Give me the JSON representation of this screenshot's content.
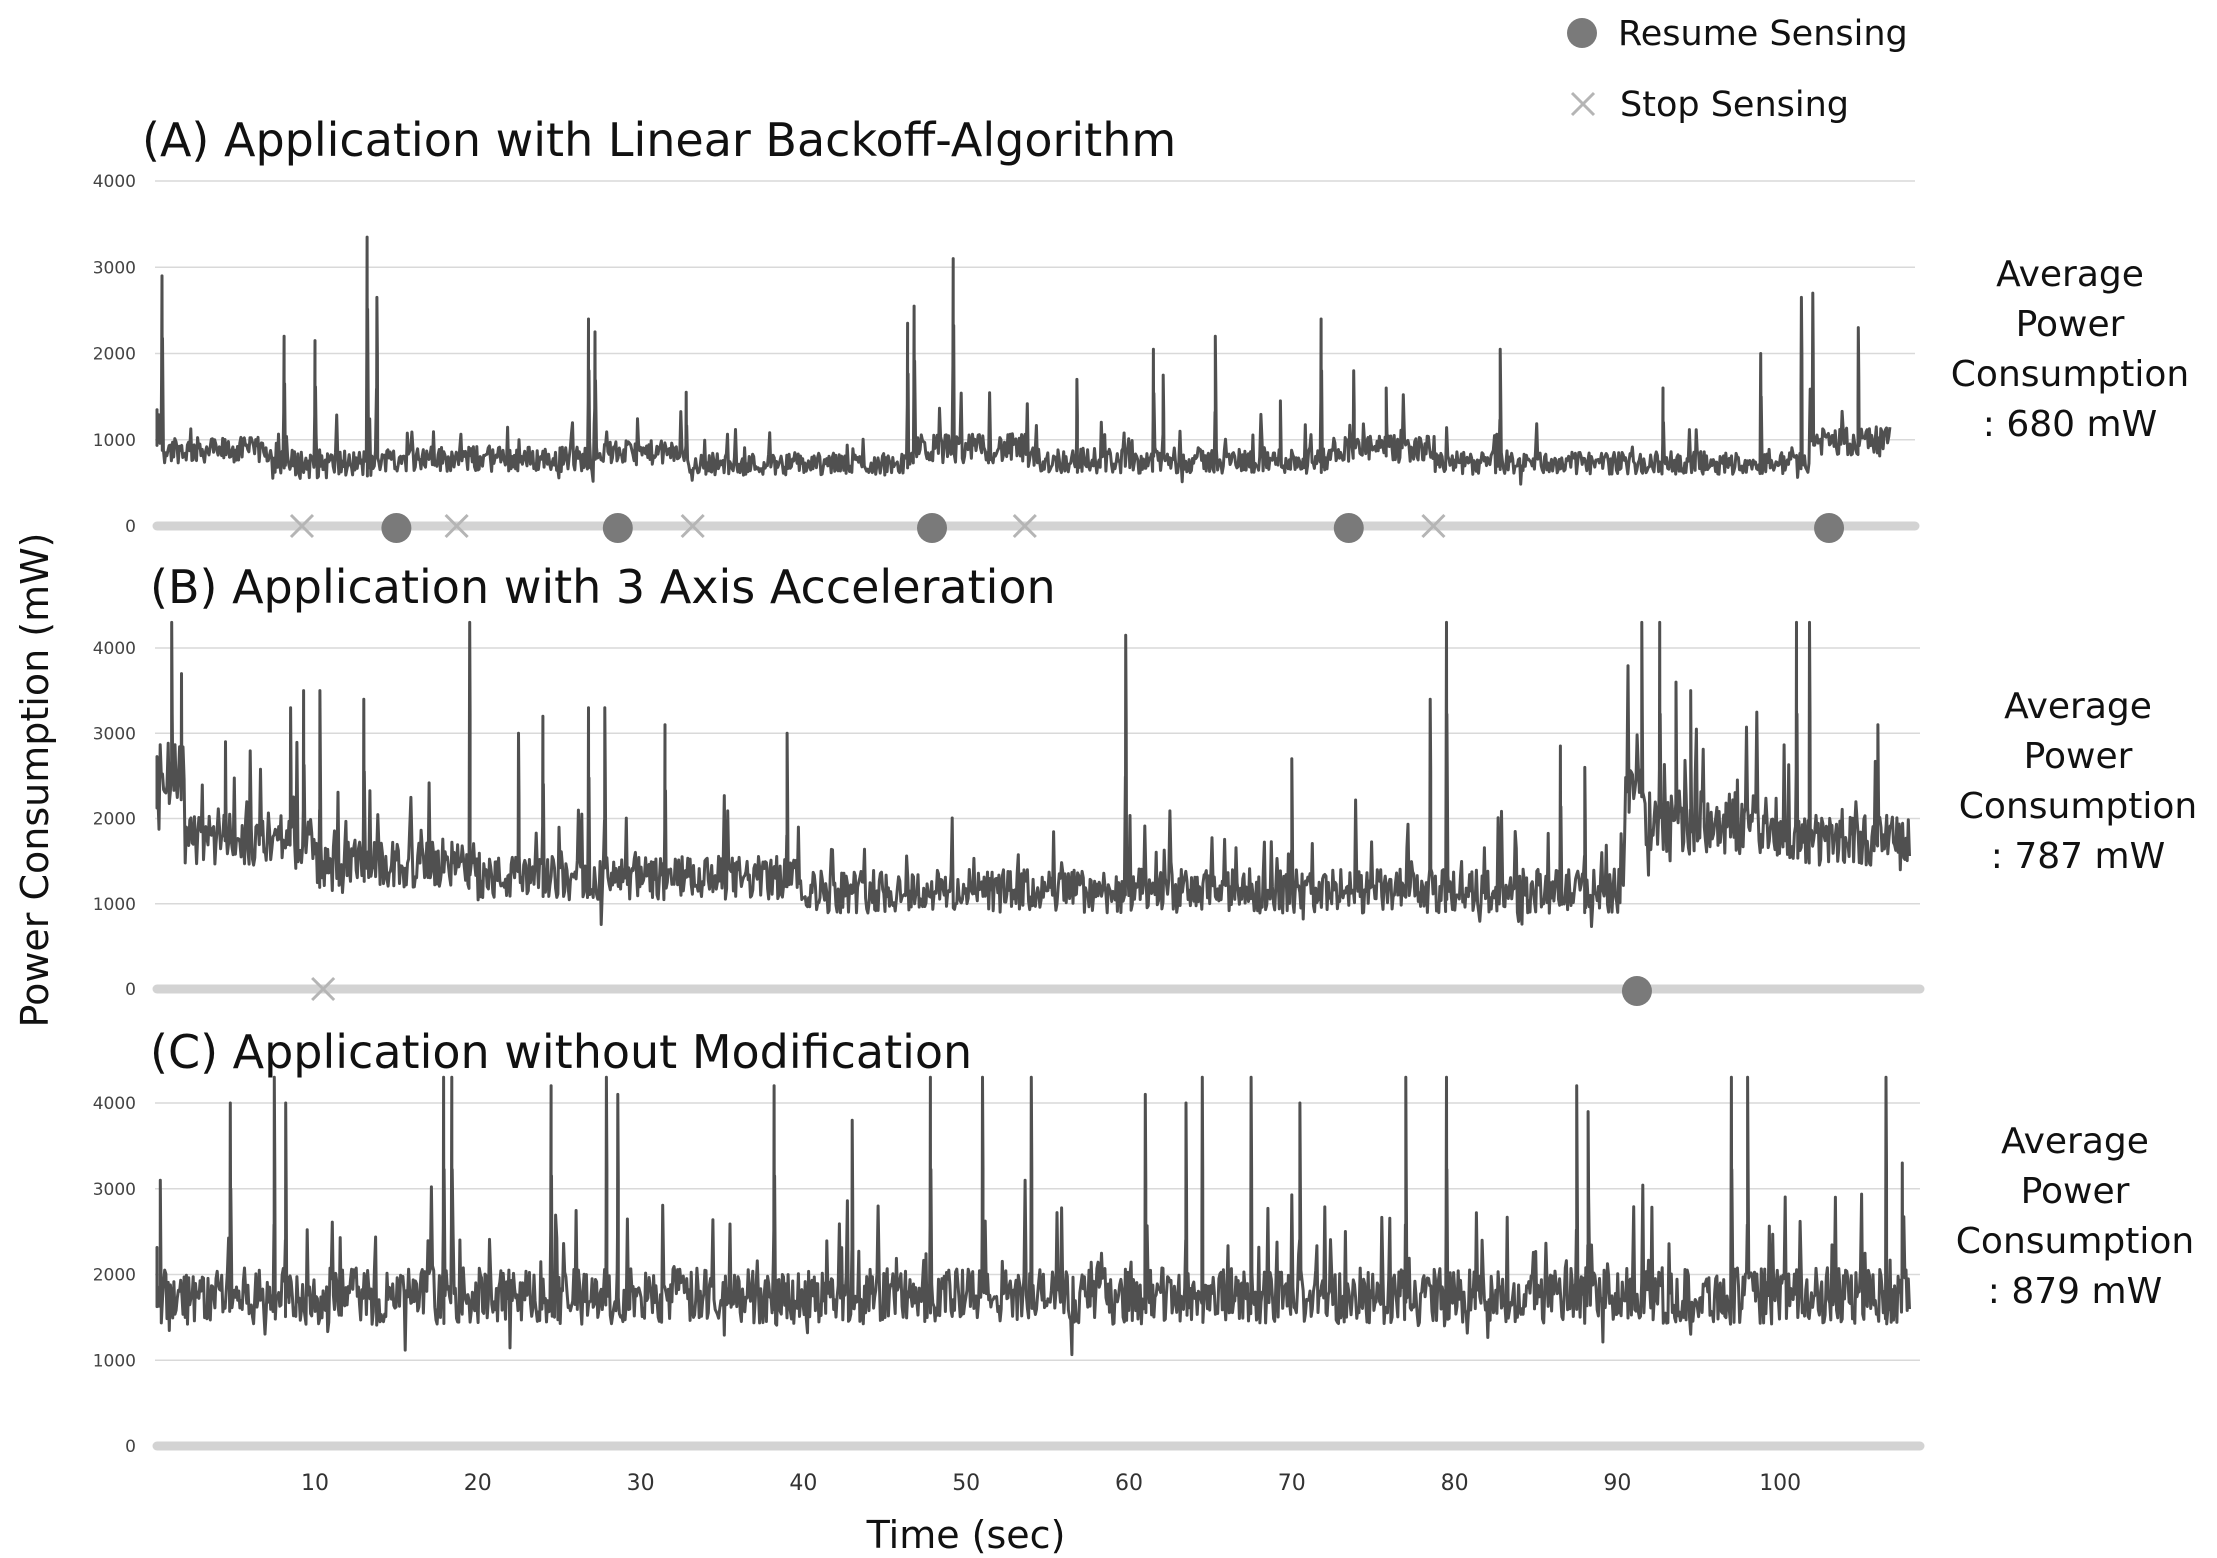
{
  "chart_data": {
    "type": "line",
    "legend": {
      "position": "top-right",
      "resume_label": "Resume Sensing",
      "stop_label": "Stop Sensing"
    },
    "ylabel": "Power Consumption (mW)",
    "xlabel": "Time (sec)",
    "xlim": [
      0,
      108
    ],
    "x_ticks": [
      "10",
      "20",
      "30",
      "40",
      "50",
      "60",
      "70",
      "80",
      "90",
      "100"
    ],
    "panels": [
      {
        "title": "(A) Application with Linear Backoff-Algorithm",
        "ylim": [
          0,
          4000
        ],
        "y_ticks": [
          "4000",
          "3000",
          "2000",
          "1000",
          "0"
        ],
        "avg_lines": [
          "Average",
          "Power",
          "Consumption",
          ": 680 mW"
        ],
        "resume_times": [
          15,
          28.6,
          47.9,
          73.5,
          103
        ],
        "stop_times": [
          9.2,
          18.7,
          33.2,
          53.6,
          78.7
        ],
        "series": {
          "name": "Power (A)",
          "segments": [
            {
              "start": 0.0,
              "end": 1.8,
              "base": 1150,
              "noise": 200
            },
            {
              "start": 1.8,
              "end": 8.5,
              "base": 880,
              "noise": 150
            },
            {
              "start": 8.5,
              "end": 15.0,
              "base": 720,
              "noise": 170
            },
            {
              "start": 15.0,
              "end": 28.6,
              "base": 780,
              "noise": 150
            },
            {
              "start": 28.6,
              "end": 34.0,
              "base": 850,
              "noise": 140
            },
            {
              "start": 34.0,
              "end": 47.9,
              "base": 720,
              "noise": 130
            },
            {
              "start": 47.9,
              "end": 55.0,
              "base": 900,
              "noise": 170
            },
            {
              "start": 55.0,
              "end": 73.5,
              "base": 760,
              "noise": 150
            },
            {
              "start": 73.5,
              "end": 80.0,
              "base": 900,
              "noise": 150
            },
            {
              "start": 80.0,
              "end": 103.0,
              "base": 730,
              "noise": 130
            },
            {
              "start": 103.0,
              "end": 108.0,
              "base": 980,
              "noise": 170
            }
          ],
          "spikes": [
            [
              1.8,
              2900
            ],
            [
              9.3,
              2200
            ],
            [
              11.2,
              2150
            ],
            [
              14.4,
              3350
            ],
            [
              15.0,
              2650
            ],
            [
              28.0,
              2400
            ],
            [
              28.4,
              2250
            ],
            [
              34.0,
              1550
            ],
            [
              47.6,
              2350
            ],
            [
              48.0,
              2550
            ],
            [
              50.4,
              3100
            ],
            [
              58.0,
              1700
            ],
            [
              62.7,
              2050
            ],
            [
              63.3,
              1750
            ],
            [
              66.5,
              2200
            ],
            [
              70.5,
              1450
            ],
            [
              73.0,
              2400
            ],
            [
              75.0,
              1800
            ],
            [
              77.0,
              1600
            ],
            [
              84.0,
              2050
            ],
            [
              94.0,
              1600
            ],
            [
              100.0,
              2000
            ],
            [
              102.5,
              2650
            ],
            [
              103.2,
              2700
            ],
            [
              106.0,
              2300
            ]
          ]
        }
      },
      {
        "title": "(B) Application with 3 Axis Acceleration",
        "ylim": [
          0,
          4000
        ],
        "y_ticks": [
          "4000",
          "3000",
          "2000",
          "1000",
          "0"
        ],
        "avg_lines": [
          "Average",
          "Power",
          "Consumption",
          ": 787 mW"
        ],
        "resume_times": [
          91.2
        ],
        "stop_times": [
          10.5
        ],
        "series": {
          "name": "Power (B)",
          "segments": [
            {
              "start": 0.0,
              "end": 2.0,
              "base": 2500,
              "noise": 400
            },
            {
              "start": 2.0,
              "end": 10.0,
              "base": 1750,
              "noise": 300
            },
            {
              "start": 10.0,
              "end": 20.0,
              "base": 1450,
              "noise": 280
            },
            {
              "start": 20.0,
              "end": 40.0,
              "base": 1300,
              "noise": 260
            },
            {
              "start": 40.0,
              "end": 90.5,
              "base": 1150,
              "noise": 260
            },
            {
              "start": 90.5,
              "end": 91.5,
              "base": 2550,
              "noise": 500
            },
            {
              "start": 91.5,
              "end": 100.0,
              "base": 1950,
              "noise": 380
            },
            {
              "start": 100.0,
              "end": 108.0,
              "base": 1750,
              "noise": 300
            }
          ],
          "spikes": [
            [
              1.2,
              4300
            ],
            [
              1.8,
              3700
            ],
            [
              4.5,
              2900
            ],
            [
              8.5,
              3300
            ],
            [
              9.3,
              3500
            ],
            [
              10.3,
              3500
            ],
            [
              13.0,
              3400
            ],
            [
              19.5,
              4300
            ],
            [
              22.5,
              3000
            ],
            [
              24.0,
              3200
            ],
            [
              26.8,
              3300
            ],
            [
              27.8,
              3300
            ],
            [
              31.5,
              3100
            ],
            [
              39.0,
              3000
            ],
            [
              59.8,
              4150
            ],
            [
              70.0,
              2700
            ],
            [
              78.5,
              3400
            ],
            [
              79.5,
              4300
            ],
            [
              86.5,
              2850
            ],
            [
              88.0,
              2600
            ],
            [
              91.5,
              4300
            ],
            [
              92.6,
              4300
            ],
            [
              93.6,
              3600
            ],
            [
              94.5,
              3500
            ],
            [
              101.0,
              4300
            ],
            [
              101.8,
              4300
            ],
            [
              106.0,
              3100
            ]
          ]
        }
      },
      {
        "title": "(C) Application without Modification",
        "ylim": [
          0,
          4000
        ],
        "y_ticks": [
          "4000",
          "3000",
          "2000",
          "1000",
          "0"
        ],
        "avg_lines": [
          "Average",
          "Power",
          "Consumption",
          ": 879 mW"
        ],
        "resume_times": [],
        "stop_times": [],
        "series": {
          "name": "Power (C)",
          "segments": [
            {
              "start": 0.0,
              "end": 108.0,
              "base": 1750,
              "noise": 330
            }
          ],
          "spikes": [
            [
              0.5,
              3100
            ],
            [
              4.8,
              4000
            ],
            [
              7.5,
              4300
            ],
            [
              8.2,
              4000
            ],
            [
              17.9,
              4300
            ],
            [
              18.4,
              4300
            ],
            [
              24.5,
              4200
            ],
            [
              27.9,
              4300
            ],
            [
              28.6,
              4100
            ],
            [
              38.2,
              4200
            ],
            [
              43.0,
              3800
            ],
            [
              47.8,
              4300
            ],
            [
              51.0,
              4300
            ],
            [
              54.0,
              4300
            ],
            [
              61.0,
              4100
            ],
            [
              63.5,
              4000
            ],
            [
              64.5,
              4300
            ],
            [
              67.5,
              4300
            ],
            [
              70.5,
              4000
            ],
            [
              77.0,
              4300
            ],
            [
              79.5,
              4300
            ],
            [
              87.5,
              4200
            ],
            [
              88.2,
              3900
            ],
            [
              97.0,
              4300
            ],
            [
              98.0,
              4300
            ],
            [
              106.5,
              4300
            ],
            [
              107.5,
              3300
            ]
          ]
        }
      }
    ]
  }
}
